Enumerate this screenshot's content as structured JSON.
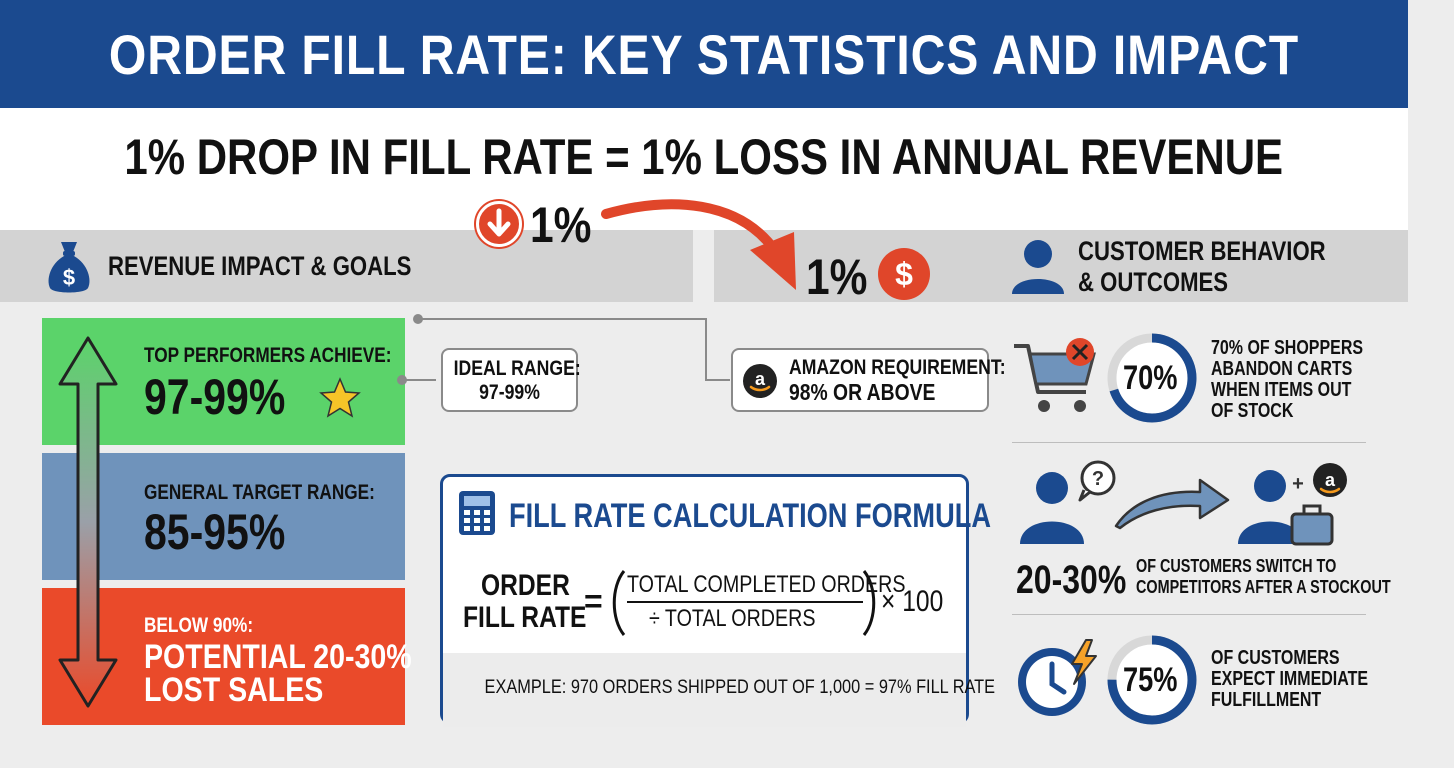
{
  "title": "ORDER FILL RATE: KEY STATISTICS AND IMPACT",
  "headline": "1% DROP IN FILL RATE = 1% LOSS IN ANNUAL REVENUE",
  "drop_label": "1%",
  "loss_label": "1%",
  "left_section": {
    "title": "REVENUE IMPACT & GOALS",
    "tiers": [
      {
        "label": "TOP PERFORMERS ACHIEVE:",
        "value": "97-99%",
        "color": "#5bd36a"
      },
      {
        "label": "GENERAL TARGET RANGE:",
        "value": "85-95%",
        "color": "#6f93bb"
      },
      {
        "label": "BELOW 90%:",
        "value_line1": "POTENTIAL 20-30%",
        "value_line2": "LOST SALES",
        "color": "#ea4a2a"
      }
    ],
    "ideal_callout": {
      "line1": "IDEAL RANGE:",
      "line2": "97-99%"
    },
    "amazon_callout": {
      "line1": "AMAZON REQUIREMENT:",
      "line2": "98% OR ABOVE"
    }
  },
  "formula": {
    "title": "FILL RATE CALCULATION FORMULA",
    "lhs_line1": "ORDER",
    "lhs_line2": "FILL RATE",
    "equals": "=",
    "numerator": "TOTAL COMPLETED ORDERS",
    "denominator": "÷ TOTAL ORDERS",
    "multiplier": "× 100",
    "example": "EXAMPLE: 970 ORDERS SHIPPED OUT OF 1,000 = 97% FILL RATE"
  },
  "right_section": {
    "title_line1": "CUSTOMER BEHAVIOR",
    "title_line2": "& OUTCOMES",
    "stats": [
      {
        "value": "70%",
        "fraction": 0.7,
        "lines": [
          "70% OF SHOPPERS",
          "ABANDON CARTS",
          "WHEN ITEMS OUT",
          "OF STOCK"
        ]
      },
      {
        "value": "20-30%",
        "lines": [
          "OF CUSTOMERS SWITCH TO",
          "COMPETITORS AFTER A STOCKOUT"
        ]
      },
      {
        "value": "75%",
        "fraction": 0.75,
        "lines": [
          "OF CUSTOMERS",
          "EXPECT IMMEDIATE",
          "FULFILLMENT"
        ]
      }
    ]
  },
  "colors": {
    "brand_blue": "#1b4a8f",
    "accent_red": "#e0462a",
    "green": "#5bd36a",
    "steel_blue": "#6f93bb"
  },
  "icons": [
    "money-bag-icon",
    "down-arrow-icon",
    "dollar-icon",
    "person-icon",
    "star-icon",
    "amazon-icon",
    "calculator-icon",
    "cart-icon",
    "question-icon",
    "suitcase-icon",
    "clock-icon",
    "lightning-icon"
  ]
}
